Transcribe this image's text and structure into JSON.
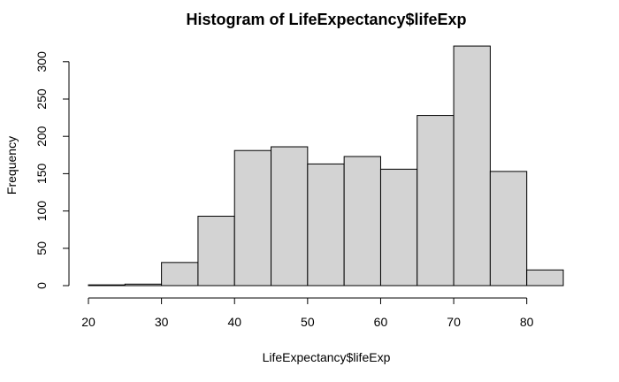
{
  "chart_data": {
    "type": "bar",
    "title": "Histogram of LifeExpectancy$lifeExp",
    "xlabel": "LifeExpectancy$lifeExp",
    "ylabel": "Frequency",
    "bins": [
      {
        "start": 20,
        "end": 25,
        "count": 1
      },
      {
        "start": 25,
        "end": 30,
        "count": 2
      },
      {
        "start": 30,
        "end": 35,
        "count": 31
      },
      {
        "start": 35,
        "end": 40,
        "count": 93
      },
      {
        "start": 40,
        "end": 45,
        "count": 181
      },
      {
        "start": 45,
        "end": 50,
        "count": 186
      },
      {
        "start": 50,
        "end": 55,
        "count": 163
      },
      {
        "start": 55,
        "end": 60,
        "count": 173
      },
      {
        "start": 60,
        "end": 65,
        "count": 156
      },
      {
        "start": 65,
        "end": 70,
        "count": 228
      },
      {
        "start": 70,
        "end": 75,
        "count": 321
      },
      {
        "start": 75,
        "end": 80,
        "count": 153
      },
      {
        "start": 80,
        "end": 85,
        "count": 21
      }
    ],
    "xlim": [
      20,
      85
    ],
    "ylim": [
      0,
      321
    ],
    "xticks": [
      "20",
      "30",
      "40",
      "50",
      "60",
      "70",
      "80"
    ],
    "yticks": [
      "0",
      "50",
      "100",
      "150",
      "200",
      "250",
      "300"
    ],
    "bar_color": "#d3d3d3",
    "grid": false,
    "legend": "none"
  }
}
